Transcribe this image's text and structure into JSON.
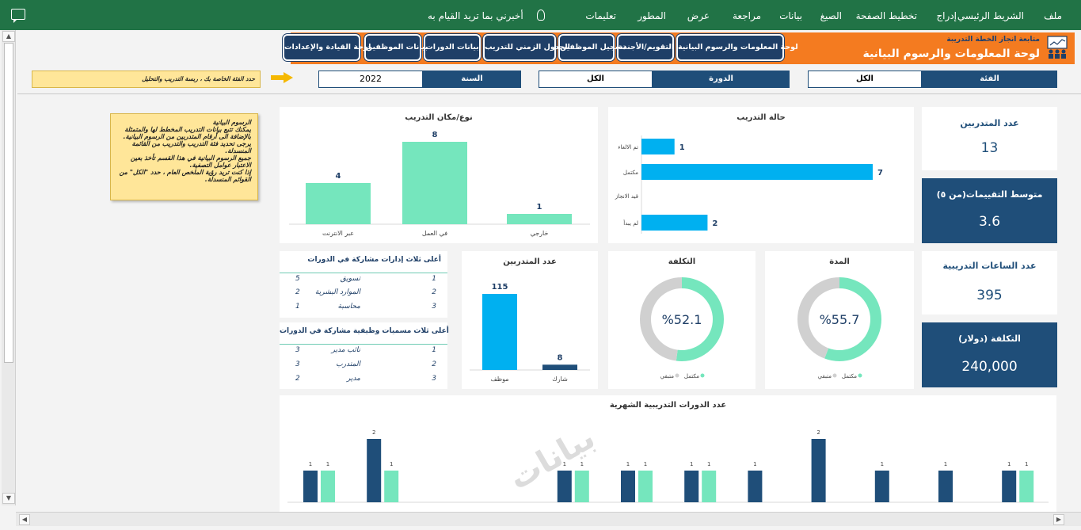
{
  "ribbon": {
    "tabs": [
      "ملف",
      "الشريط الرئيسي",
      "إدراج",
      "تخطيط الصفحة",
      "الصيغ",
      "بيانات",
      "مراجعة",
      "عرض",
      "المطور",
      "تعليمات"
    ],
    "tell_me": "أخبرني بما تريد القيام به"
  },
  "banner": {
    "subtitle": "متابعة انجاز الخطة التدريبة",
    "title": "لوحة المعلومات والرسوم البيانية",
    "nav": [
      "لوحة المعلومات والرسوم البيانية",
      "التقويم/الأجندة",
      "تسجيل الموظفين",
      "الجدول الزمني للتدريب",
      "بيانات الدورات",
      "بيانات الموظفين",
      "لوحة القيادة والإعدادات"
    ]
  },
  "filters": {
    "category_label": "الفئة",
    "category_value": "الكل",
    "course_label": "الدورة",
    "course_value": "الكل",
    "year_label": "السنة",
    "year_value": "2022"
  },
  "filter_note": "حدد الفئة الخاصة بك ، ربسة التدريب والتحليل",
  "info_note": {
    "title": "الرسوم البيانية",
    "lines": [
      "يمكنك تتبع بيانات التدريب المخطط لها والمتمثلة بالإضافة الى أرقام المتدربين من الرسوم البيانية.",
      "يرجى تحديد فئة التدريب والتدريب من القائمة المنسدلة.",
      "جميع الرسوم البيانية في هذا القسم تأخذ بعين الاعتبار عوامل التصفية.",
      "إذا كنت تريد رؤية الملخص العام ، حدد \"الكل\" من القوائم المنسدلة."
    ]
  },
  "kpis": {
    "trainees_label": "عدد المتدربين",
    "trainees_value": "13",
    "rating_label": "متوسط التقييمات(من ٥)",
    "rating_value": "3.6",
    "hours_label": "عدد الساعات التدريبية",
    "hours_value": "395",
    "cost_label": "التكلفة (دولار)",
    "cost_value": "240,000"
  },
  "chart_data": [
    {
      "id": "training-type",
      "type": "bar",
      "title": "نوع/مكان التدريب",
      "categories": [
        "عبر الانترنت",
        "في العمل",
        "خارجي"
      ],
      "values": [
        4,
        8,
        1
      ],
      "color": "#75e6bd"
    },
    {
      "id": "training-status",
      "type": "bar",
      "orientation": "horizontal",
      "title": "حالة التدريب",
      "categories": [
        "تم الالغاء",
        "مكتمل",
        "قيد الانجاز",
        "لم يبدأ"
      ],
      "values": [
        1,
        7,
        0,
        2
      ],
      "color": "#00b0f0"
    },
    {
      "id": "trainee-count",
      "type": "bar",
      "title": "عدد المتدربين",
      "categories": [
        "موظف",
        "شارك"
      ],
      "values": [
        115,
        8
      ],
      "colors": [
        "#00b0f0",
        "#1f4e79"
      ]
    },
    {
      "id": "cost-donut",
      "type": "pie",
      "title": "التكلفة",
      "center_label": "%52.1",
      "slices": [
        {
          "name": "مكتمل",
          "value": 52.1,
          "color": "#75e6bd"
        },
        {
          "name": "متبقي",
          "value": 47.9,
          "color": "#d0d0d0"
        }
      ]
    },
    {
      "id": "duration-donut",
      "type": "pie",
      "title": "المدة",
      "center_label": "%55.7",
      "slices": [
        {
          "name": "مكتمل",
          "value": 55.7,
          "color": "#75e6bd"
        },
        {
          "name": "متبقي",
          "value": 44.3,
          "color": "#d0d0d0"
        }
      ]
    },
    {
      "id": "monthly-courses",
      "type": "bar",
      "title": "عدد الدورات التدريبية الشهرية",
      "series": [
        {
          "color": "#1f4e79",
          "values": [
            1,
            2,
            null,
            null,
            1,
            1,
            1,
            1,
            2,
            1,
            1,
            1
          ]
        },
        {
          "color": "#75e6bd",
          "values": [
            1,
            1,
            null,
            null,
            1,
            1,
            1,
            null,
            null,
            null,
            null,
            1
          ]
        }
      ],
      "ylim": [
        0,
        2
      ]
    }
  ],
  "top_departments": {
    "title": "أعلى ثلاث إدارات مشاركة في الدورات",
    "rows": [
      {
        "rank": "1",
        "name": "تسويق",
        "count": "5"
      },
      {
        "rank": "2",
        "name": "الموارد البشرية",
        "count": "2"
      },
      {
        "rank": "3",
        "name": "محاسبة",
        "count": "1"
      }
    ]
  },
  "top_titles": {
    "title": "أعلى ثلاث مسميات وظيفية مشاركة في الدورات",
    "rows": [
      {
        "rank": "1",
        "name": "نائب مدير",
        "count": "3"
      },
      {
        "rank": "2",
        "name": "المتدرب",
        "count": "3"
      },
      {
        "rank": "3",
        "name": "مدير",
        "count": "2"
      }
    ]
  },
  "watermark": "بيانات"
}
